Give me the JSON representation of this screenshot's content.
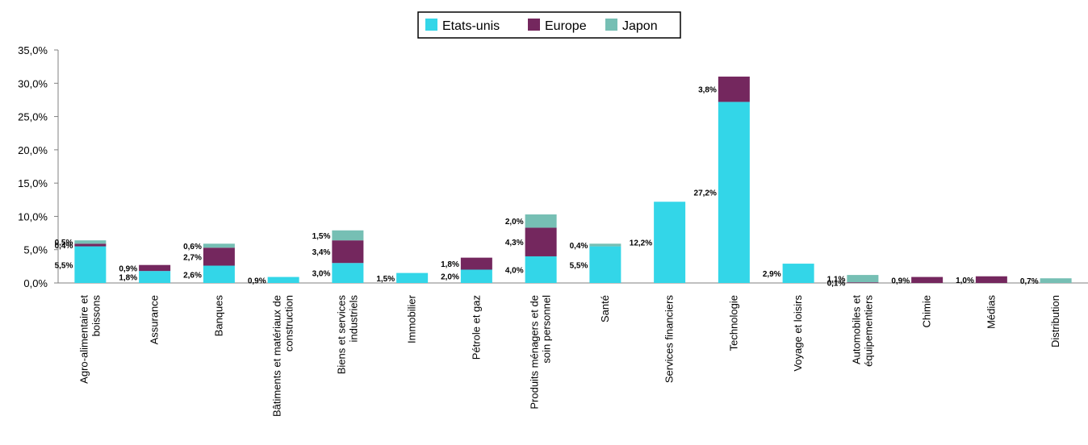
{
  "chart_data": {
    "type": "bar",
    "stacked": true,
    "legend_position": "top-center",
    "grid": false,
    "title": "",
    "xlabel": "",
    "ylabel": "",
    "ylim": [
      0,
      35
    ],
    "y_ticks": [
      "0,0%",
      "5,0%",
      "10,0%",
      "15,0%",
      "20,0%",
      "25,0%",
      "30,0%",
      "35,0%"
    ],
    "categories": [
      [
        "Agro-alimentaire et",
        "boissons"
      ],
      [
        "Assurance"
      ],
      [
        "Banques"
      ],
      [
        "Bâtiments et matériaux de",
        "construction"
      ],
      [
        "Biens et services",
        "industriels"
      ],
      [
        "Immobilier"
      ],
      [
        "Pétrole et gaz"
      ],
      [
        "Produits ménagers et de",
        "soin personnel"
      ],
      [
        "Santé"
      ],
      [
        "Services financiers"
      ],
      [
        "Technologie"
      ],
      [
        "Voyage et loisirs"
      ],
      [
        "Automobiles et",
        "équipementiers"
      ],
      [
        "Chimie"
      ],
      [
        "Médias"
      ],
      [
        "Distribution"
      ]
    ],
    "series": [
      {
        "name": "Etats-unis",
        "color": "#33d6e8",
        "values": [
          5.5,
          1.8,
          2.6,
          0.9,
          3.0,
          1.5,
          2.0,
          4.0,
          5.5,
          12.2,
          27.2,
          2.9,
          0,
          0,
          0,
          0
        ],
        "labels": [
          "5,5%",
          "1,8%",
          "2,6%",
          "0,9%",
          "3,0%",
          "1,5%",
          "2,0%",
          "4,0%",
          "5,5%",
          "12,2%",
          "27,2%",
          "2,9%",
          null,
          null,
          null,
          null
        ]
      },
      {
        "name": "Europe",
        "color": "#74275e",
        "values": [
          0.4,
          0.9,
          2.7,
          0,
          3.4,
          0,
          1.8,
          4.3,
          0,
          0,
          3.8,
          0,
          0.1,
          0.9,
          1.0,
          0
        ],
        "labels": [
          "0,4%",
          "0,9%",
          "2,7%",
          null,
          "3,4%",
          null,
          "1,8%",
          "4,3%",
          null,
          null,
          "3,8%",
          null,
          "0,1%",
          "0,9%",
          "1,0%",
          null
        ]
      },
      {
        "name": "Japon",
        "color": "#76bfb4",
        "values": [
          0.5,
          0,
          0.6,
          0,
          1.5,
          0,
          0,
          2.0,
          0.4,
          0,
          0,
          0,
          1.1,
          0,
          0,
          0.7
        ],
        "labels": [
          "0,5%",
          null,
          "0,6%",
          null,
          "1,5%",
          null,
          null,
          "2,0%",
          "0,4%",
          null,
          null,
          null,
          "1,1%",
          null,
          null,
          "0,7%"
        ]
      }
    ]
  }
}
